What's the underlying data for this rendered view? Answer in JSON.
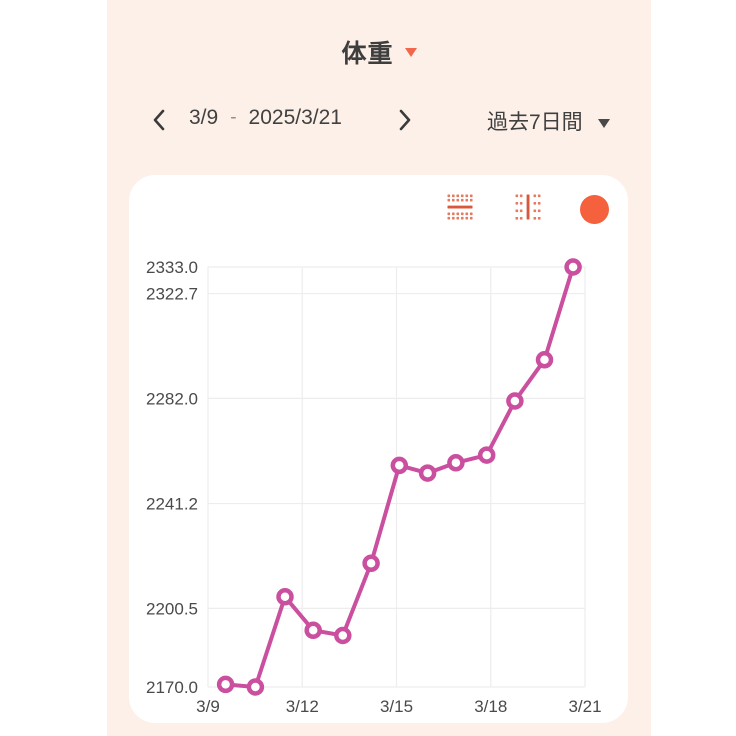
{
  "colors": {
    "app_bg": "#fdf0e8",
    "card_bg": "#ffffff",
    "accent_orange": "#f2674b",
    "icon_dot": "#e57a60",
    "icon_bar": "#d8583c",
    "series_color": "#f4613c",
    "line_pink": "#ca4f9f",
    "grid": "#ededed",
    "tick_text": "#4a4a4a"
  },
  "header": {
    "title": "体重",
    "dropdown_icon": "caret-down"
  },
  "date_nav": {
    "prev_icon": "chevron-left",
    "next_icon": "chevron-right",
    "range_start": "3/9",
    "range_separator": "-",
    "range_end": "2025/3/21",
    "period": "過去7日間",
    "period_icon": "caret-down"
  },
  "chart_card": {
    "toggles": [
      {
        "name": "horizontal-grid-toggle"
      },
      {
        "name": "vertical-grid-toggle"
      },
      {
        "name": "series-color-dot"
      }
    ]
  },
  "chart_data": {
    "type": "line",
    "title": "体重",
    "xlabel": "",
    "ylabel": "",
    "grid": true,
    "x_range": [
      0,
      12
    ],
    "y_range": [
      2170.0,
      2333.0
    ],
    "x_ticks": [
      {
        "x": 0,
        "label": "3/9"
      },
      {
        "x": 3,
        "label": "3/12"
      },
      {
        "x": 6,
        "label": "3/15"
      },
      {
        "x": 9,
        "label": "3/18"
      },
      {
        "x": 12,
        "label": "3/21"
      }
    ],
    "y_ticks": [
      {
        "value": 2333.0,
        "label": "2333.0"
      },
      {
        "value": 2322.7,
        "label": "2322.7"
      },
      {
        "value": 2282.0,
        "label": "2282.0"
      },
      {
        "value": 2241.2,
        "label": "2241.2"
      },
      {
        "value": 2200.5,
        "label": "2200.5"
      },
      {
        "value": 2170.0,
        "label": "2170.0"
      }
    ],
    "series": [
      {
        "name": "体重",
        "color": "#ca4f9f",
        "points": [
          {
            "x": 0.56,
            "y": 2171
          },
          {
            "x": 1.51,
            "y": 2170
          },
          {
            "x": 2.45,
            "y": 2205
          },
          {
            "x": 3.35,
            "y": 2192
          },
          {
            "x": 4.29,
            "y": 2190
          },
          {
            "x": 5.19,
            "y": 2218
          },
          {
            "x": 6.09,
            "y": 2256
          },
          {
            "x": 6.99,
            "y": 2253
          },
          {
            "x": 7.89,
            "y": 2257
          },
          {
            "x": 8.87,
            "y": 2260
          },
          {
            "x": 9.77,
            "y": 2281
          },
          {
            "x": 10.71,
            "y": 2297
          },
          {
            "x": 11.62,
            "y": 2333
          }
        ]
      }
    ]
  }
}
